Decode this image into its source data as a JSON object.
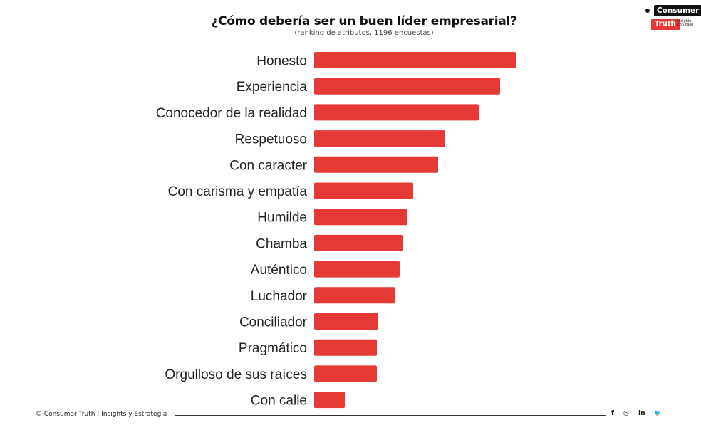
{
  "chart_data": {
    "type": "bar",
    "orientation": "horizontal",
    "title": "¿Cómo debería ser un buen líder empresarial?",
    "subtitle": "(ranking de atributos, 1196 encuestas)",
    "categories": [
      "Honesto",
      "Experiencia",
      "Conocedor de la realidad",
      "Respetuoso",
      "Con caracter",
      "Con carisma y empatía",
      "Humilde",
      "Chamba",
      "Auténtico",
      "Luchador",
      "Conciliador",
      "Pragmático",
      "Orgulloso de sus raíces",
      "Con calle"
    ],
    "values": [
      283,
      261,
      231,
      184,
      174,
      139,
      131,
      124,
      120,
      114,
      90,
      88,
      88,
      43
    ],
    "color": "#e53935",
    "grid": false,
    "legend": "none"
  },
  "brand": {
    "name_top": "Consumer",
    "name_bottom": "Truth",
    "tagline": "insights con calle",
    "red": "#e53935"
  },
  "footer": {
    "copyright": "© Consumer Truth | Insights y Estrategia",
    "social_icons": [
      "facebook-icon",
      "instagram-icon",
      "linkedin-icon",
      "twitter-icon"
    ],
    "social_glyphs": [
      "f",
      "◎",
      "in",
      "🐦"
    ]
  }
}
